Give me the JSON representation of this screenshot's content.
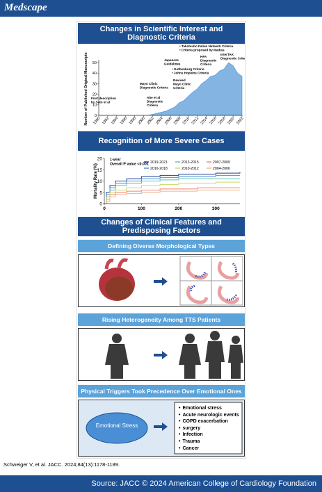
{
  "header": {
    "logo": "Medscape"
  },
  "sections": [
    {
      "title": "Changes in Scientific Interest and Diagnostic Criteria"
    },
    {
      "title": "Recognition of More Severe Cases"
    },
    {
      "title": "Changes of Clinical Features and Predisposing Factors",
      "panels": [
        {
          "title": "Defining Diverse Morphological Types"
        },
        {
          "title": "Rising Heterogeneity Among TTS Patients"
        },
        {
          "title": "Physical Triggers Took Precedence Over Emotional Ones",
          "trigger": "Emotional Stress",
          "items": [
            "Emotional stress",
            "Acute neurologic events",
            "COPD  exacerbation",
            "surgery",
            "Infection",
            "Trauma",
            "Cancer"
          ]
        }
      ]
    }
  ],
  "chart_data": [
    {
      "type": "area",
      "x": [
        1990,
        1991,
        1992,
        1993,
        1994,
        1995,
        1996,
        1997,
        1998,
        1999,
        2000,
        2001,
        2002,
        2003,
        2004,
        2005,
        2006,
        2007,
        2008,
        2009,
        2010,
        2011,
        2012,
        2013,
        2014,
        2015,
        2016,
        2017,
        2018,
        2019,
        2020,
        2021,
        2022
      ],
      "values": [
        0,
        0,
        0,
        0,
        0,
        0,
        0,
        0,
        0,
        0,
        0,
        0,
        1,
        2,
        3,
        4,
        6,
        8,
        12,
        14,
        18,
        22,
        25,
        30,
        33,
        37,
        38,
        42,
        44,
        50,
        47,
        40,
        37
      ],
      "color": "#84b5e2",
      "ylabel": "Number of Published Original Manuscripts",
      "xlim": [
        1990,
        2022
      ],
      "ylim": [
        0,
        50
      ],
      "xticks": [
        1990,
        1992,
        1994,
        1996,
        1998,
        2000,
        2002,
        2004,
        2006,
        2008,
        2010,
        2012,
        2014,
        2016,
        2018,
        2020,
        2022
      ],
      "yticks": [
        0,
        10,
        20,
        30,
        40,
        50
      ],
      "annotations": [
        [
          "First description",
          "by Sato et al"
        ],
        [
          "Mayo Clinic",
          "Diagnostic Criteria"
        ],
        [
          "Abe et al",
          "Diagnostic",
          "Criteria"
        ],
        [
          "Japanese",
          "Guidelines"
        ],
        [
          "Revised",
          "Mayo Clinic",
          "Criteria"
        ],
        [
          "• Gothenburg Criteria",
          "• Johns Hopkins Criteria"
        ],
        [
          "HFA",
          "Diagnostic",
          "Criteria"
        ],
        [
          "InterTAK",
          "Diagnostic Criteria"
        ],
        [
          "• Takotsubo Italian Network Criteria",
          "• Criteria proposed by Madias"
        ]
      ]
    },
    {
      "type": "step",
      "x": [
        0,
        5,
        15,
        30,
        60,
        100,
        150,
        200,
        250,
        300,
        365
      ],
      "series": [
        {
          "name": "2019-2021",
          "color": "#1f3f8f",
          "values": [
            0,
            5,
            8,
            10,
            11,
            12,
            12.5,
            13,
            13,
            13.5,
            14
          ]
        },
        {
          "name": "2013-2015",
          "color": "#5cc0b0",
          "values": [
            0,
            3,
            6,
            8,
            9,
            10,
            10.5,
            11,
            11,
            11,
            11
          ]
        },
        {
          "name": "2007-2009",
          "color": "#f08070",
          "values": [
            0,
            2,
            4,
            5,
            5.5,
            6,
            6.5,
            6.5,
            7,
            7,
            7
          ]
        },
        {
          "name": "2016-2018",
          "color": "#4a8fd6",
          "values": [
            0,
            4,
            7,
            9,
            10,
            11,
            11.5,
            12,
            12,
            12.5,
            12.5
          ]
        },
        {
          "name": "2010-2012",
          "color": "#c8d86a",
          "values": [
            0,
            3,
            5,
            6,
            7,
            8,
            8.5,
            9,
            9,
            9.5,
            9.5
          ]
        },
        {
          "name": "2004-2006",
          "color": "#f4b183",
          "values": [
            0,
            1,
            3,
            4,
            4.5,
            5,
            5.5,
            5.5,
            6,
            6,
            6
          ]
        }
      ],
      "ylabel": "Mortality Rate (%)",
      "xlim": [
        0,
        365
      ],
      "ylim": [
        0,
        20
      ],
      "xticks": [
        0,
        100,
        200,
        300
      ],
      "yticks": [
        0,
        5,
        10,
        15,
        20
      ],
      "annotations": [
        [
          "1-year",
          "Overall P value <0.001"
        ]
      ]
    }
  ],
  "citation": "Schweiger V, et al. JACC. 2024;84(13):1178-1189.",
  "footer": "Source: JACC © 2024 American College of Cardiology Foundation"
}
